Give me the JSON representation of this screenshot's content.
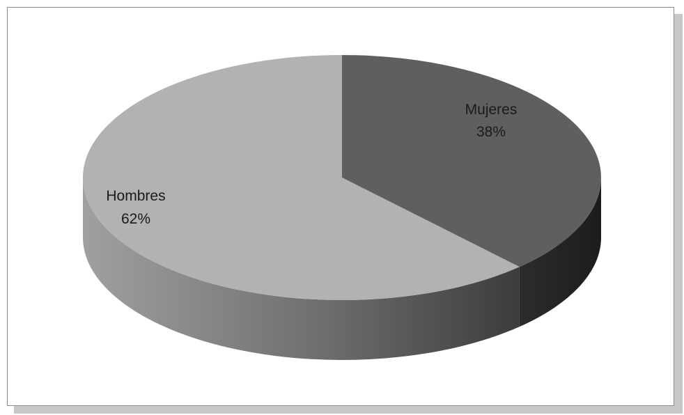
{
  "chart_data": {
    "type": "pie",
    "style": "3d",
    "slices": [
      {
        "name": "Mujeres",
        "value": 38,
        "label": "38%",
        "color": "#5f5f5f"
      },
      {
        "name": "Hombres",
        "value": 62,
        "label": "62%",
        "color": "#b2b2b2"
      }
    ],
    "legend": "none",
    "data_labels": "category and percentage"
  }
}
